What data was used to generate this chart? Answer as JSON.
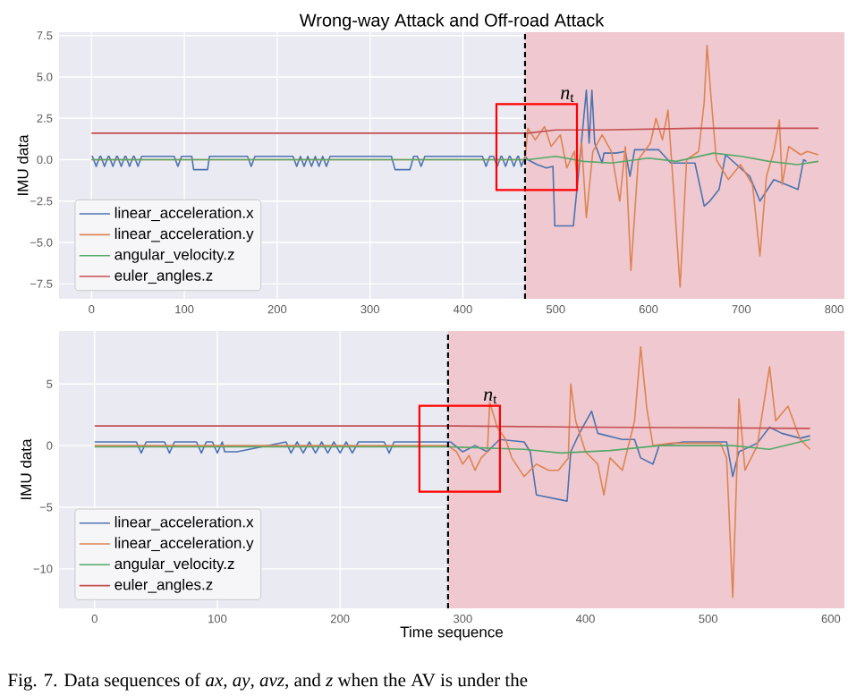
{
  "chart_data": [
    {
      "type": "line",
      "title": "Wrong-way Attack and Off-road Attack",
      "ylabel": "IMU data",
      "xlim": [
        -35,
        811
      ],
      "ylim": [
        -8.4,
        7.7
      ],
      "xticks": [
        0,
        100,
        200,
        300,
        400,
        500,
        600,
        700,
        800
      ],
      "yticks": [
        {
          "value": -7.5,
          "label": "−7.5"
        },
        {
          "value": -5,
          "label": "−5.0"
        },
        {
          "value": -2.5,
          "label": "−2.5"
        },
        {
          "value": 0,
          "label": "0.0"
        },
        {
          "value": 2.5,
          "label": "2.5"
        },
        {
          "value": 5,
          "label": "5.0"
        },
        {
          "value": 7.5,
          "label": "7.5"
        }
      ],
      "grid": true,
      "legend": "bottom left",
      "bands": [
        {
          "axis": "x",
          "from": 467,
          "to": 811,
          "color": "#efc9cf"
        }
      ],
      "ref_lines": [
        {
          "axis": "x",
          "value": 467,
          "color": "#000000",
          "line_style": "dashed"
        }
      ],
      "annotations": [
        "*n*$_{t}$"
      ],
      "series": [
        {
          "name": "linear_acceleration.x",
          "color": "#4c72b0",
          "x": [
            0,
            1,
            5,
            9,
            10,
            14,
            18,
            19,
            23,
            27,
            28,
            32,
            36,
            37,
            41,
            45,
            46,
            50,
            54,
            58,
            89,
            93,
            97,
            108,
            110,
            125,
            127,
            168,
            172,
            176,
            217,
            221,
            225,
            229,
            233,
            237,
            241,
            245,
            249,
            253,
            257,
            323,
            327,
            343,
            347,
            351,
            355,
            359,
            421,
            425,
            429,
            433,
            437,
            441,
            442,
            446,
            450,
            451,
            455,
            459,
            460,
            463,
            467,
            470,
            480,
            490,
            497,
            499,
            519,
            526,
            533,
            536,
            539,
            542,
            550,
            552,
            565,
            575,
            580,
            585,
            611,
            624,
            650,
            660,
            666,
            676,
            683,
            709,
            720,
            735,
            748,
            761,
            767,
            770
          ],
          "values": [
            0.2,
            0.2,
            -0.4,
            0.2,
            0.2,
            -0.4,
            0.2,
            0.2,
            -0.4,
            0.2,
            0.2,
            -0.4,
            0.2,
            0.2,
            -0.4,
            0.2,
            0.2,
            -0.4,
            0.2,
            0.2,
            0.2,
            -0.4,
            0.2,
            0.2,
            -0.6,
            -0.6,
            0.2,
            0.2,
            -0.4,
            0.2,
            0.2,
            -0.4,
            0.2,
            -0.4,
            0.2,
            -0.4,
            0.2,
            -0.4,
            0.2,
            -0.4,
            0.2,
            0.2,
            -0.6,
            -0.6,
            0.2,
            0.2,
            -0.4,
            0.2,
            0.2,
            -0.4,
            0.2,
            0.2,
            -0.4,
            0.2,
            0.2,
            -0.4,
            0.2,
            0.2,
            -0.4,
            0.2,
            0.2,
            -0.4,
            0.2,
            0,
            -0.3,
            -0.5,
            -0.4,
            -4.0,
            -4.0,
            0,
            4.2,
            1.0,
            4.2,
            1.0,
            -0.2,
            0.4,
            0.4,
            0.5,
            -1.0,
            0.6,
            0.6,
            -0.2,
            -0.2,
            -2.8,
            -2.5,
            -1.8,
            0.3,
            -1.0,
            -2.5,
            -1.2,
            -1.5,
            -1.8,
            0,
            -0.1
          ]
        },
        {
          "name": "linear_acceleration.y",
          "color": "#dd8452",
          "x": [
            0,
            467,
            470,
            478,
            488,
            495,
            505,
            512,
            520,
            523,
            528,
            533,
            540,
            550,
            560,
            569,
            575,
            581,
            589,
            602,
            608,
            615,
            621,
            626,
            634,
            641,
            654,
            660,
            663,
            667,
            673,
            686,
            699,
            712,
            720,
            727,
            735,
            741,
            744,
            751,
            764,
            771,
            783
          ],
          "values": [
            0,
            0,
            1.9,
            1.2,
            2.0,
            0.8,
            1.5,
            -0.5,
            0.5,
            -1.0,
            1.0,
            -3.5,
            0.5,
            1.5,
            0.5,
            -2.5,
            0.8,
            -6.7,
            0,
            1.0,
            2.5,
            1.2,
            3.0,
            -1.0,
            -7.7,
            0,
            0.5,
            3.5,
            6.9,
            4.0,
            0,
            -1.2,
            -0.3,
            -1.5,
            -5.8,
            -1.0,
            0.5,
            2.4,
            -1.5,
            0.8,
            0.3,
            0.5,
            0.3
          ]
        },
        {
          "name": "angular_velocity.z",
          "color": "#55a868",
          "x": [
            0,
            470,
            500,
            530,
            560,
            600,
            630,
            670,
            700,
            730,
            760,
            783
          ],
          "values": [
            0,
            0,
            0.2,
            -0.1,
            -0.2,
            0.1,
            -0.1,
            0.4,
            0.2,
            -0.1,
            -0.3,
            -0.1
          ]
        },
        {
          "name": "euler_angles.z",
          "color": "#c44e52",
          "x": [
            0,
            470,
            500,
            550,
            650,
            783
          ],
          "values": [
            1.6,
            1.6,
            1.8,
            1.8,
            1.9,
            1.9
          ]
        }
      ]
    },
    {
      "type": "line",
      "xlabel": "Time sequence",
      "ylabel": "IMU data",
      "xlim": [
        -29,
        611
      ],
      "ylim": [
        -13.2,
        9.3
      ],
      "xticks": [
        0,
        100,
        200,
        300,
        400,
        500,
        600
      ],
      "yticks": [
        {
          "value": -10,
          "label": "−10"
        },
        {
          "value": -5,
          "label": "−5"
        },
        0,
        5
      ],
      "grid": true,
      "legend": "bottom left",
      "bands": [
        {
          "axis": "x",
          "from": 288,
          "to": 611,
          "color": "#efc9cf"
        }
      ],
      "ref_lines": [
        {
          "axis": "x",
          "value": 288,
          "color": "#000000",
          "line_style": "dashed"
        }
      ],
      "annotations": [
        "*n*$_{t}$",
        "Fig. 7.  Data sequences of *ax*, *ay*, *avz*, and *z* when the AV is under the"
      ],
      "series": [
        {
          "name": "linear_acceleration.x",
          "color": "#4c72b0",
          "x": [
            0,
            34,
            38,
            42,
            57,
            61,
            65,
            83,
            87,
            91,
            96,
            100,
            104,
            106,
            116,
            156,
            160,
            165,
            170,
            175,
            180,
            185,
            190,
            195,
            200,
            205,
            210,
            215,
            236,
            240,
            244,
            290,
            300,
            310,
            320,
            330,
            350,
            355,
            360,
            385,
            388,
            395,
            405,
            410,
            430,
            440,
            445,
            455,
            460,
            480,
            515,
            520,
            525,
            540,
            550,
            560,
            575,
            583
          ],
          "values": [
            0.3,
            0.3,
            -0.6,
            0.3,
            0.3,
            -0.6,
            0.3,
            0.3,
            -0.6,
            0.3,
            0.3,
            -0.6,
            0.3,
            -0.5,
            -0.5,
            0.3,
            -0.6,
            0.3,
            -0.6,
            0.3,
            -0.6,
            0.3,
            -0.6,
            0.3,
            -0.6,
            0.3,
            -0.6,
            0.3,
            0.3,
            -0.6,
            0.3,
            0.3,
            -0.5,
            0,
            -0.5,
            0.5,
            0.3,
            -0.5,
            -4.0,
            -4.5,
            -0.5,
            1.0,
            2.8,
            1.0,
            0.5,
            0.5,
            -1.0,
            -1.5,
            0,
            0.3,
            0.3,
            -2.5,
            -0.5,
            0.2,
            1.5,
            1.0,
            0.6,
            0.8
          ]
        },
        {
          "name": "linear_acceleration.y",
          "color": "#dd8452",
          "x": [
            0,
            288,
            295,
            300,
            305,
            310,
            315,
            320,
            322,
            328,
            335,
            340,
            350,
            360,
            370,
            378,
            386,
            388,
            392,
            400,
            410,
            415,
            420,
            430,
            440,
            445,
            450,
            455,
            470,
            510,
            515,
            520,
            523,
            525,
            530,
            540,
            550,
            555,
            565,
            575,
            583
          ],
          "values": [
            0,
            0,
            -0.5,
            -1.5,
            -0.8,
            -2.0,
            -1.0,
            -0.5,
            3.5,
            1.5,
            0.5,
            -1.0,
            -2.5,
            -1.5,
            -2.0,
            -2.0,
            -1.0,
            5.0,
            2.0,
            -0.5,
            -1.5,
            -4.0,
            -1.0,
            -2.0,
            2.0,
            8.0,
            3.0,
            0,
            0.2,
            0.2,
            -1.0,
            -12.3,
            -3.0,
            3.8,
            -2.0,
            0,
            6.4,
            2.0,
            3.2,
            0.5,
            -0.3
          ]
        },
        {
          "name": "angular_velocity.z",
          "color": "#55a868",
          "x": [
            0,
            290,
            350,
            380,
            420,
            460,
            520,
            550,
            583
          ],
          "values": [
            -0.1,
            -0.1,
            -0.3,
            -0.6,
            -0.4,
            0,
            0,
            -0.3,
            0.5
          ]
        },
        {
          "name": "euler_angles.z",
          "color": "#c44e52",
          "x": [
            0,
            290,
            400,
            583
          ],
          "values": [
            1.6,
            1.6,
            1.5,
            1.4
          ]
        }
      ]
    }
  ]
}
